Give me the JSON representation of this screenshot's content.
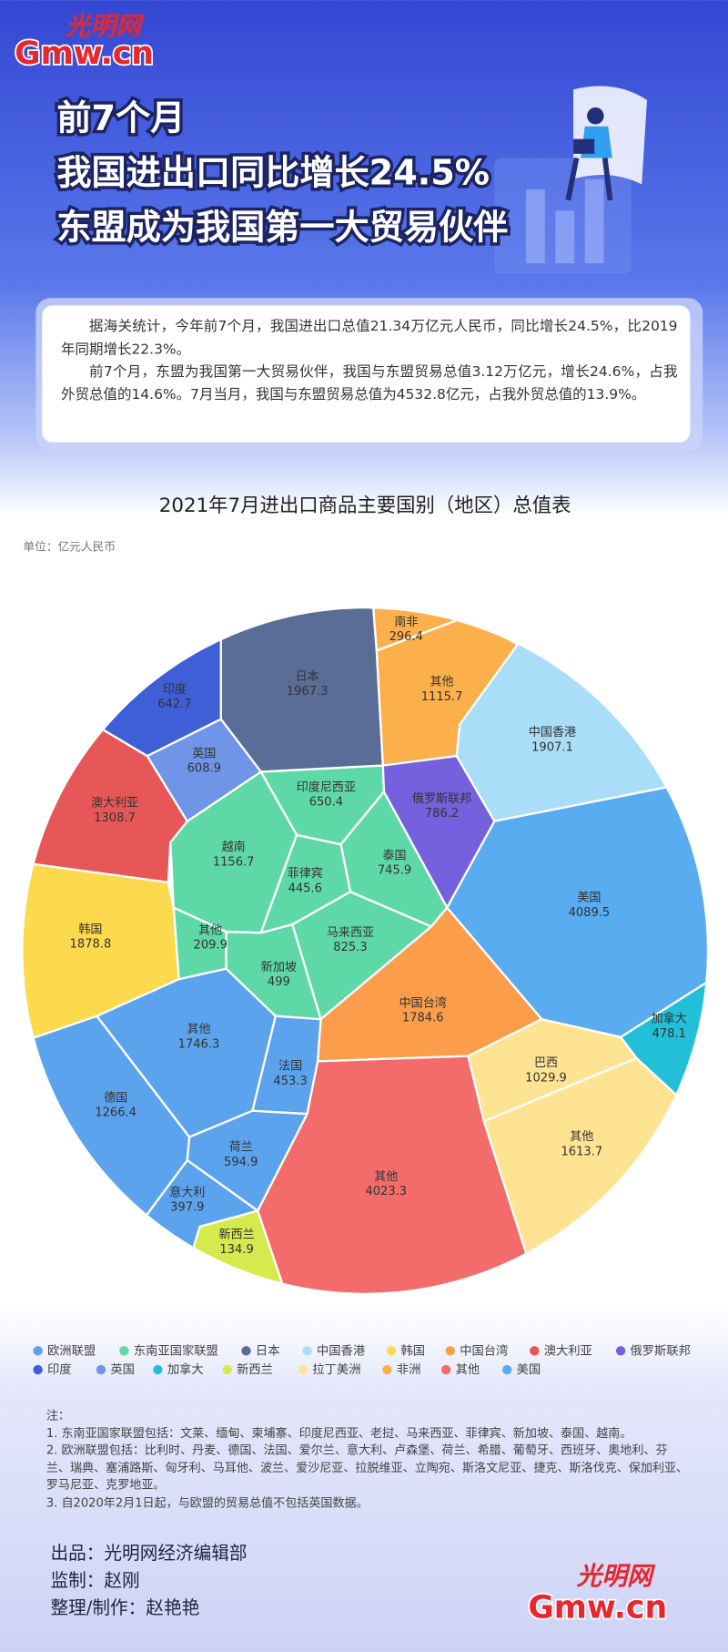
{
  "header": {
    "logo": {
      "brand": "光明网",
      "domain": "Gmw.cn"
    },
    "title_lines": [
      "前7个月",
      "我国进出口同比增长24.5%",
      "东盟成为我国第一大贸易伙伴"
    ],
    "intro": [
      "据海关统计，今年前7个月，我国进出口总值21.34万亿元人民币，同比增长24.5%，比2019年同期增长22.3%。",
      "前7个月，东盟为我国第一大贸易伙伴，我国与东盟贸易总值3.12万亿元，增长24.6%，占我外贸总值的14.6%。7月当月，我国与东盟贸易总值为4532.8亿元，占我外贸总值的13.9%。"
    ]
  },
  "chart_data": {
    "type": "voronoi-treemap",
    "title": "2021年7月进出口商品主要国别（地区）总值表",
    "unit": "单位：亿元人民币",
    "series": [
      {
        "name": "欧洲联盟",
        "color": "#5ba3ec",
        "cells": [
          {
            "name": "其他",
            "value": 1746.3
          },
          {
            "name": "法国",
            "value": 453.3
          },
          {
            "name": "德国",
            "value": 1266.4
          },
          {
            "name": "荷兰",
            "value": 594.9
          },
          {
            "name": "意大利",
            "value": 397.9
          }
        ]
      },
      {
        "name": "东南亚国家联盟",
        "color": "#5fd8a8",
        "cells": [
          {
            "name": "印度尼西亚",
            "value": 650.4
          },
          {
            "name": "越南",
            "value": 1156.7
          },
          {
            "name": "泰国",
            "value": 745.9
          },
          {
            "name": "菲律宾",
            "value": 445.6
          },
          {
            "name": "其他",
            "value": 209.9
          },
          {
            "name": "新加坡",
            "value": 499
          },
          {
            "name": "马来西亚",
            "value": 825.3
          }
        ]
      },
      {
        "name": "日本",
        "color": "#5a6d96",
        "cells": [
          {
            "value": 1967.3
          }
        ]
      },
      {
        "name": "中国香港",
        "color": "#a9ddf8",
        "cells": [
          {
            "value": 1907.1
          }
        ]
      },
      {
        "name": "韩国",
        "color": "#fdd94e",
        "cells": [
          {
            "value": 1878.8
          }
        ]
      },
      {
        "name": "中国台湾",
        "color": "#fb9d4b",
        "cells": [
          {
            "value": 1784.6
          }
        ]
      },
      {
        "name": "澳大利亚",
        "color": "#e85757",
        "cells": [
          {
            "value": 1308.7
          }
        ]
      },
      {
        "name": "俄罗斯联邦",
        "color": "#7560de",
        "cells": [
          {
            "value": 786.2
          }
        ]
      },
      {
        "name": "印度",
        "color": "#3e5fd6",
        "cells": [
          {
            "value": 642.7
          }
        ]
      },
      {
        "name": "英国",
        "color": "#6f94e8",
        "cells": [
          {
            "value": 608.9
          }
        ]
      },
      {
        "name": "加拿大",
        "color": "#22c0d8",
        "cells": [
          {
            "value": 478.1
          }
        ]
      },
      {
        "name": "新西兰",
        "color": "#d5ea4d",
        "cells": [
          {
            "value": 134.9
          }
        ]
      },
      {
        "name": "拉丁美洲",
        "color": "#fee392",
        "cells": [
          {
            "name": "巴西",
            "value": 1029.9
          },
          {
            "name": "其他",
            "value": 1613.7
          }
        ]
      },
      {
        "name": "非洲",
        "color": "#fcb04c",
        "cells": [
          {
            "name": "南非",
            "value": 296.4
          },
          {
            "name": "其他",
            "value": 1115.7
          }
        ]
      },
      {
        "name": "其他",
        "color": "#f46b6b",
        "cells": [
          {
            "value": 4023.3
          }
        ]
      },
      {
        "name": "美国",
        "color": "#58acef",
        "cells": [
          {
            "value": 4089.5
          }
        ]
      }
    ]
  },
  "notes": {
    "heading": "注：",
    "items": [
      "1. 东南亚国家联盟包括：文莱、缅甸、柬埔寨、印度尼西亚、老挝、马来西亚、菲律宾、新加坡、泰国、越南。",
      "2. 欧洲联盟包括：比利时、丹麦、德国、法国、爱尔兰、意大利、卢森堡、荷兰、希腊、葡萄牙、西班牙、奥地利、芬兰、瑞典、塞浦路斯、匈牙利、马耳他、波兰、爱沙尼亚、拉脱维亚、立陶宛、斯洛文尼亚、捷克、斯洛伐克、保加利亚、罗马尼亚、克罗地亚。",
      "3. 自2020年2月1日起，与欧盟的贸易总值不包括英国数据。"
    ]
  },
  "credits": [
    "出品：光明网经济编辑部",
    "监制：赵刚",
    "整理/制作：赵艳艳"
  ]
}
